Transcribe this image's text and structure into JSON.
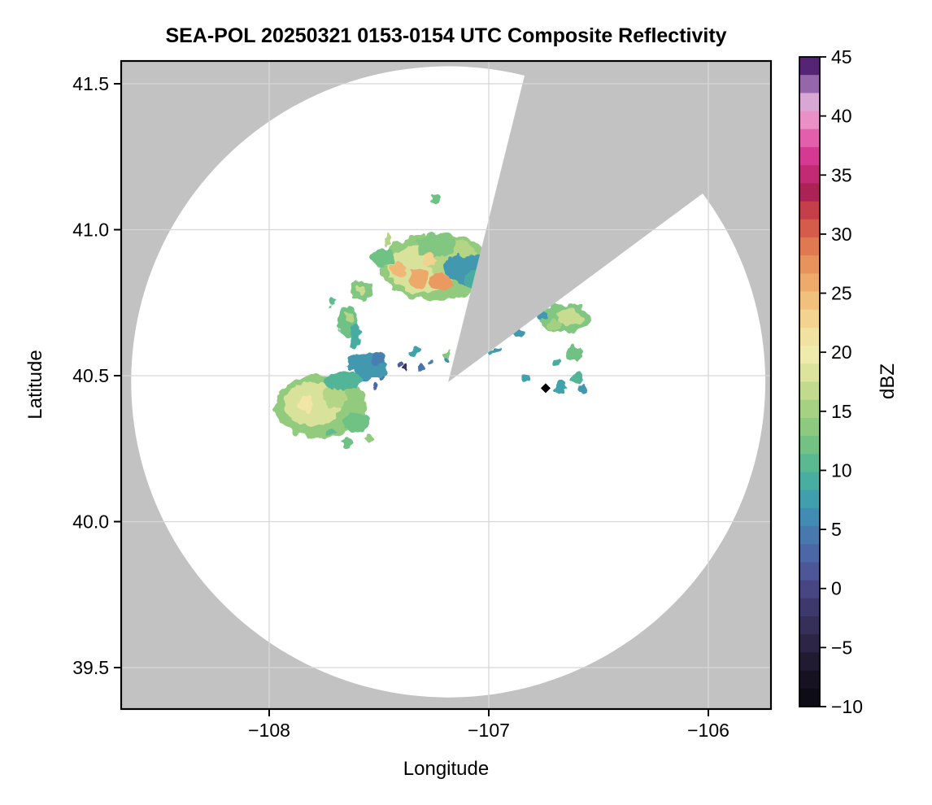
{
  "figure": {
    "title": "SEA-POL 20250321 0153-0154 UTC Composite Reflectivity",
    "xlabel": "Longitude",
    "ylabel": "Latitude"
  },
  "axes": {
    "x_ticks": [
      {
        "value": -108,
        "label": "−108"
      },
      {
        "value": -107,
        "label": "−107"
      },
      {
        "value": -106,
        "label": "−106"
      }
    ],
    "y_ticks": [
      {
        "value": 41.5,
        "label": "41.5"
      },
      {
        "value": 41.0,
        "label": "41.0"
      },
      {
        "value": 40.5,
        "label": "40.5"
      },
      {
        "value": 40.0,
        "label": "40.0"
      },
      {
        "value": 39.5,
        "label": "39.5"
      }
    ],
    "x_range": [
      -108.68,
      -105.71
    ],
    "y_range": [
      39.36,
      41.58
    ],
    "grid": true
  },
  "colorbar": {
    "label": "dBZ",
    "vmin": -10,
    "vmax": 45,
    "n_segments": 36,
    "ticks": [
      {
        "value": 45,
        "label": "45"
      },
      {
        "value": 40,
        "label": "40"
      },
      {
        "value": 35,
        "label": "35"
      },
      {
        "value": 30,
        "label": "30"
      },
      {
        "value": 25,
        "label": "25"
      },
      {
        "value": 20,
        "label": "20"
      },
      {
        "value": 15,
        "label": "15"
      },
      {
        "value": 10,
        "label": "10"
      },
      {
        "value": 5,
        "label": "5"
      },
      {
        "value": 0,
        "label": "0"
      },
      {
        "value": -5,
        "label": "−5"
      },
      {
        "value": -10,
        "label": "−10"
      }
    ]
  },
  "chart_data": {
    "type": "heatmap",
    "units": "dBZ",
    "title": "SEA-POL 20250321 0153-0154 UTC Composite Reflectivity",
    "xlabel": "Longitude",
    "ylabel": "Latitude",
    "background_color": "#c2c2c2",
    "scan_area_color": "#ffffff",
    "grid_color": "#d7d7d7",
    "radar": {
      "center_lon": -107.185,
      "center_lat": 40.478,
      "range_lon_deg": 1.444,
      "range_lat_deg": 1.081
    },
    "blocked_sector": {
      "edge1": {
        "lon": -106.837,
        "lat": 41.528
      },
      "edge2": {
        "lon": -106.026,
        "lat": 41.124
      }
    },
    "marker": {
      "shape": "diamond",
      "color": "#000000",
      "lon": -106.741,
      "lat": 40.457
    },
    "colormap_stops": [
      [
        -10,
        "#0a0a10"
      ],
      [
        -7,
        "#1b1527"
      ],
      [
        -5,
        "#2a2342"
      ],
      [
        -2,
        "#3b3666"
      ],
      [
        0,
        "#474784"
      ],
      [
        2,
        "#4f5b9d"
      ],
      [
        4,
        "#4973ad"
      ],
      [
        6,
        "#428cb3"
      ],
      [
        8,
        "#41a3ab"
      ],
      [
        10,
        "#52b598"
      ],
      [
        12,
        "#70c184"
      ],
      [
        14,
        "#92cb7d"
      ],
      [
        16,
        "#b5d586"
      ],
      [
        18,
        "#d8e29a"
      ],
      [
        20,
        "#f0ecae"
      ],
      [
        22,
        "#f3dd9b"
      ],
      [
        24,
        "#f1c681"
      ],
      [
        26,
        "#eda96a"
      ],
      [
        28,
        "#e68a58"
      ],
      [
        30,
        "#da654c"
      ],
      [
        32,
        "#c43f49"
      ],
      [
        33.5,
        "#aa2253"
      ],
      [
        35,
        "#c02a72"
      ],
      [
        36.5,
        "#d43890"
      ],
      [
        38,
        "#e25aa9"
      ],
      [
        39.5,
        "#eb8dc4"
      ],
      [
        41,
        "#e0aed8"
      ],
      [
        42,
        "#b487c0"
      ],
      [
        43,
        "#8a58a2"
      ],
      [
        44,
        "#5f2b7e"
      ],
      [
        45,
        "#3a0c52"
      ]
    ],
    "echoes": [
      {
        "lon": -107.237,
        "lat": 40.873,
        "rx": 0.26,
        "ry": 0.115,
        "dbz": 14
      },
      {
        "lon": -107.3,
        "lat": 40.866,
        "rx": 0.155,
        "ry": 0.085,
        "dbz": 18
      },
      {
        "lon": -107.17,
        "lat": 40.9,
        "rx": 0.12,
        "ry": 0.065,
        "dbz": 16
      },
      {
        "lon": -107.235,
        "lat": 40.946,
        "rx": 0.09,
        "ry": 0.045,
        "dbz": 13
      },
      {
        "lon": -107.319,
        "lat": 40.834,
        "rx": 0.05,
        "ry": 0.035,
        "dbz": 26
      },
      {
        "lon": -107.215,
        "lat": 40.82,
        "rx": 0.045,
        "ry": 0.033,
        "dbz": 27
      },
      {
        "lon": -107.411,
        "lat": 40.868,
        "rx": 0.033,
        "ry": 0.025,
        "dbz": 25
      },
      {
        "lon": -107.27,
        "lat": 40.898,
        "rx": 0.03,
        "ry": 0.02,
        "dbz": 23
      },
      {
        "lon": -107.096,
        "lat": 40.868,
        "rx": 0.105,
        "ry": 0.05,
        "dbz": 7
      },
      {
        "lon": -107.063,
        "lat": 40.828,
        "rx": 0.05,
        "ry": 0.03,
        "dbz": 9
      },
      {
        "lon": -107.485,
        "lat": 40.901,
        "rx": 0.05,
        "ry": 0.038,
        "dbz": 12
      },
      {
        "lon": -107.456,
        "lat": 40.968,
        "rx": 0.016,
        "ry": 0.026,
        "dbz": 16
      },
      {
        "lon": -107.241,
        "lat": 41.102,
        "rx": 0.015,
        "ry": 0.014,
        "dbz": 12
      },
      {
        "lon": -107.585,
        "lat": 40.79,
        "rx": 0.05,
        "ry": 0.035,
        "dbz": 13
      },
      {
        "lon": -107.58,
        "lat": 40.795,
        "rx": 0.02,
        "ry": 0.015,
        "dbz": 17
      },
      {
        "lon": -107.715,
        "lat": 40.751,
        "rx": 0.02,
        "ry": 0.014,
        "dbz": 11
      },
      {
        "lon": -107.641,
        "lat": 40.687,
        "rx": 0.045,
        "ry": 0.055,
        "dbz": 12
      },
      {
        "lon": -107.637,
        "lat": 40.7,
        "rx": 0.02,
        "ry": 0.02,
        "dbz": 16
      },
      {
        "lon": -107.607,
        "lat": 40.631,
        "rx": 0.025,
        "ry": 0.05,
        "dbz": 9
      },
      {
        "lon": -107.62,
        "lat": 40.545,
        "rx": 0.03,
        "ry": 0.025,
        "dbz": 7
      },
      {
        "lon": -107.565,
        "lat": 40.51,
        "rx": 0.035,
        "ry": 0.028,
        "dbz": 6
      },
      {
        "lon": -107.307,
        "lat": 40.525,
        "rx": 0.015,
        "ry": 0.012,
        "dbz": 4
      },
      {
        "lon": -107.381,
        "lat": 40.527,
        "rx": 0.012,
        "ry": 0.012,
        "dbz": -2
      },
      {
        "lon": -107.404,
        "lat": 40.54,
        "rx": 0.012,
        "ry": 0.012,
        "dbz": 2
      },
      {
        "lon": -107.335,
        "lat": 40.585,
        "rx": 0.022,
        "ry": 0.012,
        "dbz": 8
      },
      {
        "lon": -107.263,
        "lat": 40.545,
        "rx": 0.012,
        "ry": 0.01,
        "dbz": 5
      },
      {
        "lon": -107.189,
        "lat": 40.567,
        "rx": 0.012,
        "ry": 0.018,
        "dbz": 13
      },
      {
        "lon": -107.193,
        "lat": 40.555,
        "rx": 0.01,
        "ry": 0.01,
        "dbz": 6
      },
      {
        "lon": -107.489,
        "lat": 40.5,
        "rx": 0.015,
        "ry": 0.012,
        "dbz": 4
      },
      {
        "lon": -107.519,
        "lat": 40.46,
        "rx": 0.012,
        "ry": 0.01,
        "dbz": 3
      },
      {
        "lon": -107.763,
        "lat": 40.394,
        "rx": 0.21,
        "ry": 0.108,
        "dbz": 14
      },
      {
        "lon": -107.8,
        "lat": 40.403,
        "rx": 0.13,
        "ry": 0.075,
        "dbz": 18
      },
      {
        "lon": -107.835,
        "lat": 40.4,
        "rx": 0.04,
        "ry": 0.03,
        "dbz": 21
      },
      {
        "lon": -107.7,
        "lat": 40.43,
        "rx": 0.06,
        "ry": 0.04,
        "dbz": 16
      },
      {
        "lon": -107.605,
        "lat": 40.34,
        "rx": 0.055,
        "ry": 0.035,
        "dbz": 12
      },
      {
        "lon": -107.659,
        "lat": 40.483,
        "rx": 0.09,
        "ry": 0.03,
        "dbz": 10
      },
      {
        "lon": -107.541,
        "lat": 40.533,
        "rx": 0.075,
        "ry": 0.045,
        "dbz": 7
      },
      {
        "lon": -107.5,
        "lat": 40.56,
        "rx": 0.03,
        "ry": 0.02,
        "dbz": 5
      },
      {
        "lon": -107.64,
        "lat": 40.27,
        "rx": 0.025,
        "ry": 0.015,
        "dbz": 12
      },
      {
        "lon": -107.55,
        "lat": 40.285,
        "rx": 0.022,
        "ry": 0.015,
        "dbz": 14
      },
      {
        "lon": -107.72,
        "lat": 40.31,
        "rx": 0.02,
        "ry": 0.012,
        "dbz": 11
      },
      {
        "lon": -106.652,
        "lat": 40.695,
        "rx": 0.115,
        "ry": 0.05,
        "dbz": 13
      },
      {
        "lon": -106.63,
        "lat": 40.7,
        "rx": 0.055,
        "ry": 0.028,
        "dbz": 17
      },
      {
        "lon": -106.7,
        "lat": 40.676,
        "rx": 0.03,
        "ry": 0.02,
        "dbz": 15
      },
      {
        "lon": -106.76,
        "lat": 40.71,
        "rx": 0.02,
        "ry": 0.014,
        "dbz": 7
      },
      {
        "lon": -106.865,
        "lat": 40.645,
        "rx": 0.035,
        "ry": 0.012,
        "dbz": 7
      },
      {
        "lon": -106.989,
        "lat": 40.581,
        "rx": 0.015,
        "ry": 0.009,
        "dbz": 8
      },
      {
        "lon": -106.966,
        "lat": 40.589,
        "rx": 0.018,
        "ry": 0.008,
        "dbz": 7
      },
      {
        "lon": -106.61,
        "lat": 40.575,
        "rx": 0.04,
        "ry": 0.028,
        "dbz": 12
      },
      {
        "lon": -106.685,
        "lat": 40.545,
        "rx": 0.02,
        "ry": 0.012,
        "dbz": 9
      },
      {
        "lon": -106.6,
        "lat": 40.49,
        "rx": 0.028,
        "ry": 0.02,
        "dbz": 10
      },
      {
        "lon": -106.67,
        "lat": 40.462,
        "rx": 0.028,
        "ry": 0.022,
        "dbz": 8
      },
      {
        "lon": -106.575,
        "lat": 40.455,
        "rx": 0.018,
        "ry": 0.014,
        "dbz": 7
      },
      {
        "lon": -106.835,
        "lat": 40.487,
        "rx": 0.018,
        "ry": 0.01,
        "dbz": 8
      }
    ]
  }
}
